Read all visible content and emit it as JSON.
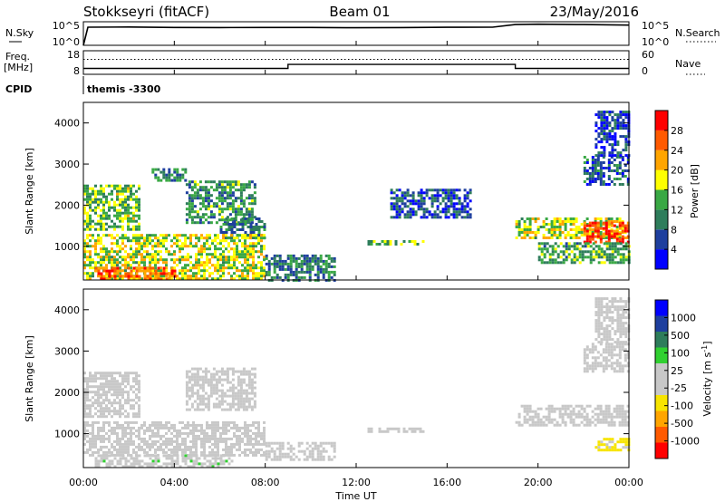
{
  "header": {
    "title": "Stokkseyri (fitACF)",
    "beam": "Beam 01",
    "date": "23/May/2016"
  },
  "labels": {
    "n_sky": "N.Sky",
    "n_search": "N.Search",
    "freq": "Freq.",
    "freq_unit": "[MHz]",
    "nave": "Nave",
    "cpid": "CPID",
    "cpid_value": "themis -3300",
    "time_axis": "Time UT"
  },
  "ticks": {
    "noise_left": [
      "10^5",
      "10^0"
    ],
    "noise_right": [
      "10^5",
      "10^0"
    ],
    "freq_left": [
      "18",
      "8"
    ],
    "freq_right": [
      "60",
      "0"
    ],
    "range": [
      "4000",
      "3000",
      "2000",
      "1000"
    ],
    "time": [
      "00:00",
      "04:00",
      "08:00",
      "12:00",
      "16:00",
      "20:00",
      "00:00"
    ]
  },
  "colors": {
    "power_scale": [
      "#0000ff",
      "#1e3f9e",
      "#2e7d5b",
      "#39a844",
      "#ffff00",
      "#ffa500",
      "#ff5a00",
      "#ff0000"
    ],
    "velocity_scale": [
      "#ff0000",
      "#ff5a00",
      "#ffa500",
      "#f7e400",
      "#c8c8c8",
      "#c8c8c8",
      "#30d030",
      "#2e7d5b",
      "#1e3f9e",
      "#0000ff"
    ],
    "ground_scatter": "#c8c8c8"
  },
  "chart_data": [
    {
      "type": "line",
      "panel": "noise",
      "title": "Stokkseyri (fitACF)",
      "xlabel": "",
      "ylabel": "N.Sky",
      "xlim": [
        0,
        24
      ],
      "yscale": "log",
      "ylim": [
        1,
        100000
      ],
      "series": [
        {
          "name": "N.Sky",
          "x": [
            0,
            0.2,
            2,
            4,
            6,
            8,
            10,
            12,
            14,
            16,
            18,
            19,
            20,
            22,
            24
          ],
          "values": [
            1,
            15000,
            16000,
            13000,
            12000,
            12500,
            13000,
            11000,
            12000,
            14000,
            15000,
            60000,
            70000,
            60000,
            45000
          ]
        },
        {
          "name": "N.Search",
          "x": [
            0,
            24
          ],
          "values": [
            null,
            null
          ]
        }
      ]
    },
    {
      "type": "line",
      "panel": "frequency",
      "ylabel": "Freq. [MHz]",
      "xlim": [
        0,
        24
      ],
      "ylim": [
        8,
        18
      ],
      "y2label": "Nave",
      "y2lim": [
        0,
        60
      ],
      "series": [
        {
          "name": "Freq.",
          "x": [
            0,
            9,
            9,
            19,
            19,
            24
          ],
          "values": [
            10.5,
            10.5,
            12.2,
            12.2,
            10.5,
            10.5
          ]
        },
        {
          "name": "Nave",
          "x": [
            0,
            24
          ],
          "values": [
            38,
            38
          ]
        }
      ]
    },
    {
      "type": "heatmap",
      "panel": "power",
      "quantity": "Power",
      "unit": "dB",
      "xlabel": "",
      "ylabel": "Slant Range [km]",
      "xlim": [
        0,
        24
      ],
      "ylim": [
        180,
        4500
      ],
      "yticks": [
        1000,
        2000,
        3000,
        4000
      ],
      "colorbar_ticks": [
        4,
        8,
        12,
        16,
        20,
        24,
        28
      ],
      "zlim": [
        0,
        30
      ],
      "regions": [
        {
          "t": [
            0.0,
            2.5
          ],
          "r": [
            1400,
            2500
          ],
          "value": 14
        },
        {
          "t": [
            3.0,
            4.5
          ],
          "r": [
            2600,
            2900
          ],
          "value": 10
        },
        {
          "t": [
            4.5,
            7.5
          ],
          "r": [
            1600,
            2600
          ],
          "value": 11
        },
        {
          "t": [
            6.0,
            8.0
          ],
          "r": [
            1200,
            1700
          ],
          "value": 9
        },
        {
          "t": [
            0.0,
            8.0
          ],
          "r": [
            180,
            1300
          ],
          "value": 16
        },
        {
          "t": [
            0.5,
            4.0
          ],
          "r": [
            180,
            500
          ],
          "value": 24
        },
        {
          "t": [
            8.0,
            11.0
          ],
          "r": [
            180,
            800
          ],
          "value": 9
        },
        {
          "t": [
            12.5,
            15.0
          ],
          "r": [
            1050,
            1150
          ],
          "value": 14
        },
        {
          "t": [
            13.5,
            17.0
          ],
          "r": [
            1700,
            2400
          ],
          "value": 6
        },
        {
          "t": [
            19.0,
            24.0
          ],
          "r": [
            1200,
            1700
          ],
          "value": 16
        },
        {
          "t": [
            22.0,
            24.0
          ],
          "r": [
            1100,
            1600
          ],
          "value": 26
        },
        {
          "t": [
            20.0,
            24.0
          ],
          "r": [
            600,
            1100
          ],
          "value": 12
        },
        {
          "t": [
            22.0,
            24.0
          ],
          "r": [
            2500,
            3200
          ],
          "value": 7
        },
        {
          "t": [
            22.5,
            24.0
          ],
          "r": [
            3200,
            4300
          ],
          "value": 5
        }
      ]
    },
    {
      "type": "heatmap",
      "panel": "velocity",
      "quantity": "Velocity",
      "unit": "m s^-1",
      "xlabel": "Time UT",
      "ylabel": "Slant Range [km]",
      "xlim": [
        0,
        24
      ],
      "ylim": [
        180,
        4500
      ],
      "yticks": [
        1000,
        2000,
        3000,
        4000
      ],
      "colorbar_ticks": [
        1000,
        500,
        100,
        25,
        -25,
        -100,
        -500,
        -1000
      ],
      "zlim": [
        -1200,
        1200
      ],
      "regions": [
        {
          "t": [
            0.0,
            2.5
          ],
          "r": [
            1400,
            2500
          ],
          "value": 0
        },
        {
          "t": [
            4.5,
            7.5
          ],
          "r": [
            1600,
            2600
          ],
          "value": 0
        },
        {
          "t": [
            0.0,
            8.0
          ],
          "r": [
            500,
            1300
          ],
          "value": 0
        },
        {
          "t": [
            0.5,
            6.5
          ],
          "r": [
            180,
            500
          ],
          "value": 150
        },
        {
          "t": [
            8.0,
            11.0
          ],
          "r": [
            400,
            800
          ],
          "value": 0
        },
        {
          "t": [
            12.5,
            15.0
          ],
          "r": [
            1050,
            1150
          ],
          "value": 0
        },
        {
          "t": [
            19.0,
            24.0
          ],
          "r": [
            1200,
            1700
          ],
          "value": 0
        },
        {
          "t": [
            22.5,
            24.0
          ],
          "r": [
            600,
            900
          ],
          "value": -300
        },
        {
          "t": [
            22.0,
            24.0
          ],
          "r": [
            2500,
            3200
          ],
          "value": 0
        },
        {
          "t": [
            22.5,
            24.0
          ],
          "r": [
            3200,
            4300
          ],
          "value": 0
        }
      ]
    }
  ]
}
